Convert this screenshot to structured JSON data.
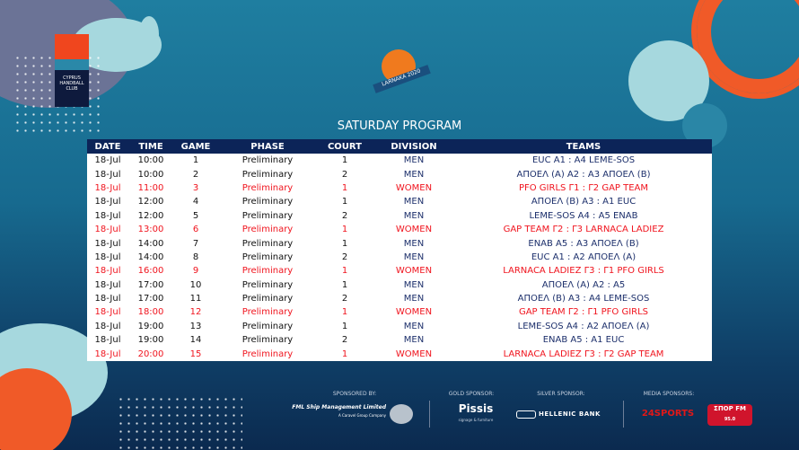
{
  "page": {
    "title": "SATURDAY PROGRAM"
  },
  "logos": {
    "club": "CYPRUS HANDBALL CLUB",
    "event": "LARNAKA 2020"
  },
  "table": {
    "headers": [
      "DATE",
      "TIME",
      "GAME",
      "PHASE",
      "COURT",
      "DIVISION",
      "TEAMS"
    ],
    "rows": [
      [
        "18-Jul",
        "10:00",
        "1",
        "Preliminary",
        "1",
        "MEN",
        "EUC A1 : A4 LEME-SOS"
      ],
      [
        "18-Jul",
        "10:00",
        "2",
        "Preliminary",
        "2",
        "MEN",
        "ΑΠΟΕΛ (Α) Α2 : Α3 ΑΠΟΕΛ (Β)"
      ],
      [
        "18-Jul",
        "11:00",
        "3",
        "Preliminary",
        "1",
        "WOMEN",
        "PFO GIRLS Γ1 : Γ2 GAP TEAM"
      ],
      [
        "18-Jul",
        "12:00",
        "4",
        "Preliminary",
        "1",
        "MEN",
        "ΑΠΟΕΛ (Β) Α3 : Α1 EUC"
      ],
      [
        "18-Jul",
        "12:00",
        "5",
        "Preliminary",
        "2",
        "MEN",
        "LEME-SOS A4 : A5 ENAB"
      ],
      [
        "18-Jul",
        "13:00",
        "6",
        "Preliminary",
        "1",
        "WOMEN",
        "GAP TEAM Γ2 : Γ3 LARNACA LADIEZ"
      ],
      [
        "18-Jul",
        "14:00",
        "7",
        "Preliminary",
        "1",
        "MEN",
        "ENAB A5 : A3 ΑΠΟΕΛ (Β)"
      ],
      [
        "18-Jul",
        "14:00",
        "8",
        "Preliminary",
        "2",
        "MEN",
        "EUC A1 : A2 ΑΠΟΕΛ (Α)"
      ],
      [
        "18-Jul",
        "16:00",
        "9",
        "Preliminary",
        "1",
        "WOMEN",
        "LARNACA LADIEZ Γ3 : Γ1 PFO GIRLS"
      ],
      [
        "18-Jul",
        "17:00",
        "10",
        "Preliminary",
        "1",
        "MEN",
        "ΑΠΟΕΛ (Α) Α2 : Α5"
      ],
      [
        "18-Jul",
        "17:00",
        "11",
        "Preliminary",
        "2",
        "MEN",
        "ΑΠΟΕΛ (Β) Α3 : Α4 LEME-SOS"
      ],
      [
        "18-Jul",
        "18:00",
        "12",
        "Preliminary",
        "1",
        "WOMEN",
        "GAP TEAM Γ2 : Γ1 PFO GIRLS"
      ],
      [
        "18-Jul",
        "19:00",
        "13",
        "Preliminary",
        "1",
        "MEN",
        "LEME-SOS A4 : A2 ΑΠΟΕΛ (Α)"
      ],
      [
        "18-Jul",
        "19:00",
        "14",
        "Preliminary",
        "2",
        "MEN",
        "ENAB A5 : A1 EUC"
      ],
      [
        "18-Jul",
        "20:00",
        "15",
        "Preliminary",
        "1",
        "WOMEN",
        "LARNACA LADIEZ Γ3 : Γ2 GAP TEAM"
      ]
    ]
  },
  "sponsors": {
    "sponsored_by_label": "SPONSORED BY:",
    "sponsored_by": "FML Ship Management Limited",
    "sponsored_by_sub": "A Caravel Group Company",
    "gold_label": "GOLD SPONSOR:",
    "gold": "Pissis",
    "gold_sub": "signage & furniture",
    "silver_label": "SILVER SPONSOR:",
    "silver": "HELLENIC BANK",
    "media_label": "MEDIA SPONSORS:",
    "media_1": "24SPORTS",
    "media_2": "ΣΠΟΡ FM",
    "media_2_sub": "95.0"
  },
  "colors": {
    "header_bg": "#0c2458",
    "men": "#1c2f6b",
    "women": "#f0141e",
    "accent_orange": "#f05a28"
  }
}
